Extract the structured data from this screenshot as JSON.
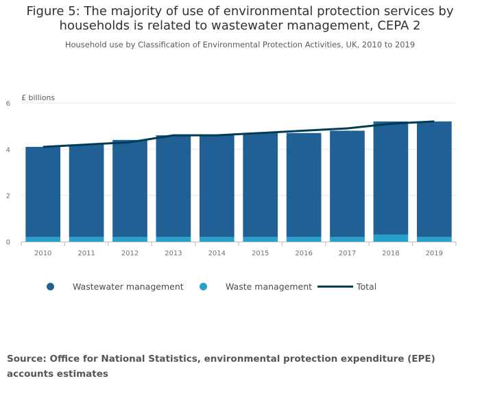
{
  "title_line1": "Figure 5: The majority of use of environmental protection services by",
  "title_line2": "households is related to wastewater management, CEPA 2",
  "subtitle": "Household use by Classification of Environmental Protection Activities, UK, 2010 to 2019",
  "source": "Source: Office for National Statistics, environmental protection expenditure (EPE) accounts estimates",
  "colors": {
    "wastewater": "#206095",
    "waste": "#27a0cc",
    "total": "#003c57",
    "grid": "#e6e6e6",
    "axis": "#bbbbbb",
    "tick_text": "#707070"
  },
  "legend": {
    "wastewater": "Wastewater management",
    "waste": "Waste management",
    "total": "Total"
  },
  "chart_data": {
    "type": "bar",
    "stacked": true,
    "title": "Figure 5: The majority of use of environmental protection services by households is related to wastewater management, CEPA 2",
    "subtitle": "Household use by Classification of Environmental Protection Activities, UK, 2010 to 2019",
    "ylabel": "£ billions",
    "xlabel": "",
    "ylim": [
      0,
      6
    ],
    "yticks": [
      "0",
      "2",
      "4",
      "6"
    ],
    "categories": [
      "2010",
      "2011",
      "2012",
      "2013",
      "2014",
      "2015",
      "2016",
      "2017",
      "2018",
      "2019"
    ],
    "series": [
      {
        "name": "Waste management",
        "kind": "bar",
        "values": [
          0.2,
          0.2,
          0.2,
          0.2,
          0.2,
          0.2,
          0.2,
          0.2,
          0.3,
          0.2
        ]
      },
      {
        "name": "Wastewater management",
        "kind": "bar",
        "values": [
          3.9,
          4.0,
          4.2,
          4.4,
          4.4,
          4.5,
          4.5,
          4.6,
          4.9,
          5.0
        ]
      },
      {
        "name": "Total",
        "kind": "line",
        "values": [
          4.1,
          4.2,
          4.3,
          4.6,
          4.6,
          4.7,
          4.8,
          4.9,
          5.1,
          5.2
        ]
      }
    ],
    "legend_position": "bottom",
    "grid": true
  }
}
